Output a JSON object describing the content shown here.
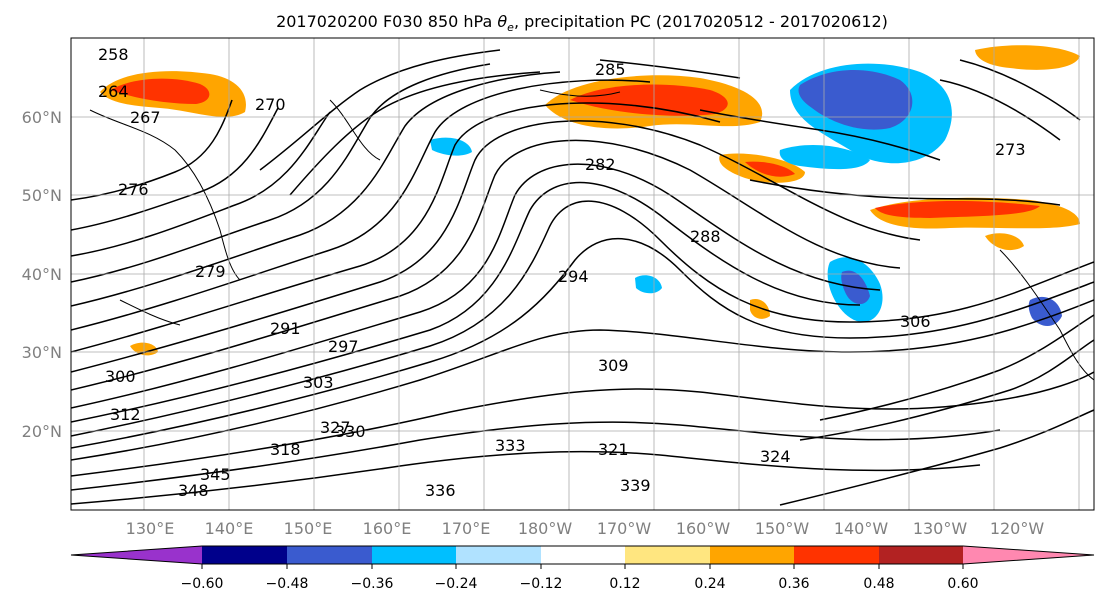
{
  "title": "2017020200 F030 850 hPa θe, precipitation PC (2017020512 - 2017020612)",
  "title_parts": {
    "prefix": "2017020200 F030 850 hPa ",
    "theta": "θ",
    "sub": "e",
    "suffix": ", precipitation PC (2017020512 - 2017020612)"
  },
  "lat_labels": [
    "20°N",
    "30°N",
    "40°N",
    "50°N",
    "60°N"
  ],
  "lon_labels": [
    "130°E",
    "140°E",
    "150°E",
    "160°E",
    "170°E",
    "180°W",
    "170°W",
    "160°W",
    "150°W",
    "140°W",
    "130°W",
    "120°W"
  ],
  "colorbar": {
    "colors": [
      "#9932cc",
      "#00008b",
      "#3a5bcf",
      "#00bfff",
      "#b0e2ff",
      "#ffffff",
      "#ffe680",
      "#ffa500",
      "#ff3300",
      "#b22222",
      "#ff88b0"
    ],
    "tick_labels": [
      "−0.60",
      "−0.48",
      "−0.36",
      "−0.24",
      "−0.12",
      "0.12",
      "0.24",
      "0.36",
      "0.48",
      "0.60"
    ]
  },
  "contour_labels": [
    "258",
    "264",
    "267",
    "270",
    "273",
    "276",
    "279",
    "282",
    "285",
    "288",
    "291",
    "294",
    "297",
    "300",
    "303",
    "306",
    "309",
    "312",
    "318",
    "321",
    "324",
    "327",
    "330",
    "333",
    "336",
    "339",
    "345",
    "348"
  ],
  "colors": {
    "contour": "#000000",
    "grid": "#aaaaaa",
    "axis_label": "#808080"
  }
}
